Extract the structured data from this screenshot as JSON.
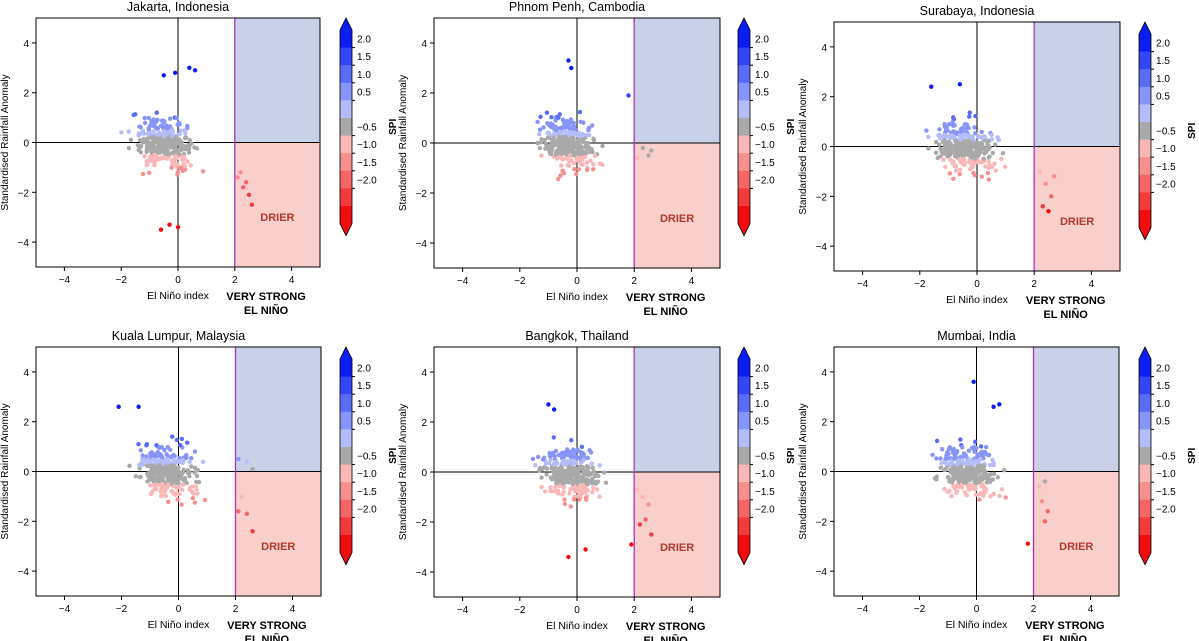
{
  "chart_data": [
    {
      "type": "scatter",
      "title": "Jakarta, Indonesia",
      "xlabel": "El Niño index",
      "ylabel": "Standardised Rainfall Anomaly",
      "xlim": [
        -5,
        5
      ],
      "ylim": [
        -5,
        5
      ],
      "xticks": [
        -4,
        -2,
        0,
        2,
        4
      ],
      "yticks": [
        -4,
        -2,
        0,
        2,
        4
      ],
      "threshold_x": 2,
      "annotation_x": "VERY STRONG",
      "annotation_x2": "EL NIÑO",
      "region_label": "DRIER",
      "cloud": {
        "x_range": [
          -2.2,
          1.6
        ],
        "y_range": [
          -3.6,
          3.0
        ]
      },
      "extra_points": [
        {
          "x": -0.1,
          "y": 2.8
        },
        {
          "x": -0.5,
          "y": 2.7
        },
        {
          "x": 0.4,
          "y": 3.0
        },
        {
          "x": 0.6,
          "y": 2.9
        },
        {
          "x": -0.3,
          "y": -3.3
        },
        {
          "x": 0.0,
          "y": -3.4
        },
        {
          "x": -0.6,
          "y": -3.5
        },
        {
          "x": 2.1,
          "y": -1.4
        },
        {
          "x": 2.3,
          "y": -1.8
        },
        {
          "x": 2.5,
          "y": -2.1
        },
        {
          "x": 2.6,
          "y": -2.5
        },
        {
          "x": 2.2,
          "y": -1.2
        },
        {
          "x": 2.4,
          "y": -1.6
        }
      ],
      "colorbar": {
        "label": "SPI",
        "ticks": [
          "2.0",
          "1.5",
          "1.0",
          "0.5",
          "−0.5",
          "−1.0",
          "−1.5",
          "−2.0"
        ],
        "colors": [
          "#0b1ef2",
          "#3346f4",
          "#5a6cf6",
          "#8794f8",
          "#b4bcfa",
          "#a9a9a9",
          "#f9b7b7",
          "#f78f8f",
          "#f46565",
          "#f23b3b",
          "#f00d0d"
        ]
      }
    },
    {
      "type": "scatter",
      "title": "Phnom Penh, Cambodia",
      "xlabel": "El Niño index",
      "ylabel": "Standardised Rainfall Anomaly",
      "xlim": [
        -5,
        5
      ],
      "ylim": [
        -5,
        5
      ],
      "xticks": [
        -4,
        -2,
        0,
        2,
        4
      ],
      "yticks": [
        -4,
        -2,
        0,
        2,
        4
      ],
      "threshold_x": 2,
      "annotation_x": "VERY STRONG",
      "annotation_x2": "EL NIÑO",
      "region_label": "DRIER",
      "cloud": {
        "x_range": [
          -2.0,
          1.7
        ],
        "y_range": [
          -2.9,
          3.3
        ]
      },
      "extra_points": [
        {
          "x": -0.3,
          "y": 3.3
        },
        {
          "x": -0.2,
          "y": 3.0
        },
        {
          "x": 1.8,
          "y": 1.9
        },
        {
          "x": 2.3,
          "y": -0.2
        },
        {
          "x": 2.5,
          "y": -0.5
        },
        {
          "x": 2.1,
          "y": -0.6
        },
        {
          "x": 2.6,
          "y": -0.3
        }
      ],
      "colorbar": {
        "label": "SPI",
        "ticks": [
          "2.0",
          "1.5",
          "1.0",
          "0.5",
          "−0.5",
          "−1.0",
          "−1.5",
          "−2.0"
        ],
        "colors": [
          "#0b1ef2",
          "#3346f4",
          "#5a6cf6",
          "#8794f8",
          "#b4bcfa",
          "#a9a9a9",
          "#f9b7b7",
          "#f78f8f",
          "#f46565",
          "#f23b3b",
          "#f00d0d"
        ]
      }
    },
    {
      "type": "scatter",
      "title": "Surabaya, Indonesia",
      "xlabel": "El Niño index",
      "ylabel": "Standardised Rainfall Anomaly",
      "xlim": [
        -5,
        5
      ],
      "ylim": [
        -5,
        5
      ],
      "xticks": [
        -4,
        -2,
        0,
        2,
        4
      ],
      "yticks": [
        -4,
        -2,
        0,
        2,
        4
      ],
      "threshold_x": 2,
      "annotation_x": "VERY STRONG",
      "annotation_x2": "EL NIÑO",
      "region_label": "DRIER",
      "cloud": {
        "x_range": [
          -2.3,
          1.8
        ],
        "y_range": [
          -2.7,
          2.5
        ]
      },
      "extra_points": [
        {
          "x": -1.6,
          "y": 2.4
        },
        {
          "x": -0.6,
          "y": 2.5
        },
        {
          "x": 2.2,
          "y": -1.0
        },
        {
          "x": 2.4,
          "y": -1.5
        },
        {
          "x": 2.6,
          "y": -2.0
        },
        {
          "x": 2.5,
          "y": -2.6
        },
        {
          "x": 2.3,
          "y": -2.4
        },
        {
          "x": 2.7,
          "y": -1.2
        }
      ],
      "colorbar": {
        "label": "SPI",
        "ticks": [
          "2.0",
          "1.5",
          "1.0",
          "0.5",
          "−0.5",
          "−1.0",
          "−1.5",
          "−2.0"
        ],
        "colors": [
          "#0b1ef2",
          "#3346f4",
          "#5a6cf6",
          "#8794f8",
          "#b4bcfa",
          "#a9a9a9",
          "#f9b7b7",
          "#f78f8f",
          "#f46565",
          "#f23b3b",
          "#f00d0d"
        ]
      }
    },
    {
      "type": "scatter",
      "title": "Kuala Lumpur, Malaysia",
      "xlabel": "El Niño index",
      "ylabel": "Standardised Rainfall Anomaly",
      "xlim": [
        -5,
        5
      ],
      "ylim": [
        -5,
        5
      ],
      "xticks": [
        -4,
        -2,
        0,
        2,
        4
      ],
      "yticks": [
        -4,
        -2,
        0,
        2,
        4
      ],
      "threshold_x": 2,
      "annotation_x": "VERY STRONG",
      "annotation_x2": "EL NIÑO",
      "region_label": "DRIER",
      "cloud": {
        "x_range": [
          -2.2,
          1.8
        ],
        "y_range": [
          -2.5,
          2.7
        ]
      },
      "extra_points": [
        {
          "x": -2.1,
          "y": 2.6
        },
        {
          "x": -1.4,
          "y": 2.6
        },
        {
          "x": 2.1,
          "y": 0.5
        },
        {
          "x": 2.4,
          "y": 0.4
        },
        {
          "x": 2.6,
          "y": 0.1
        },
        {
          "x": 2.2,
          "y": -1.0
        },
        {
          "x": 2.4,
          "y": -1.7
        },
        {
          "x": 2.6,
          "y": -2.4
        },
        {
          "x": 2.1,
          "y": -1.6
        }
      ],
      "colorbar": {
        "label": "SPI",
        "ticks": [
          "2.0",
          "1.5",
          "1.0",
          "0.5",
          "−0.5",
          "−1.0",
          "−1.5",
          "−2.0"
        ],
        "colors": [
          "#0b1ef2",
          "#3346f4",
          "#5a6cf6",
          "#8794f8",
          "#b4bcfa",
          "#a9a9a9",
          "#f9b7b7",
          "#f78f8f",
          "#f46565",
          "#f23b3b",
          "#f00d0d"
        ]
      }
    },
    {
      "type": "scatter",
      "title": "Bangkok, Thailand",
      "xlabel": "El Niño index",
      "ylabel": "Standardised Rainfall Anomaly",
      "xlim": [
        -5,
        5
      ],
      "ylim": [
        -5,
        5
      ],
      "xticks": [
        -4,
        -2,
        0,
        2,
        4
      ],
      "yticks": [
        -4,
        -2,
        0,
        2,
        4
      ],
      "threshold_x": 2,
      "annotation_x": "VERY STRONG",
      "annotation_x2": "EL NIÑO",
      "region_label": "DRIER",
      "cloud": {
        "x_range": [
          -2.0,
          1.9
        ],
        "y_range": [
          -3.4,
          2.6
        ]
      },
      "extra_points": [
        {
          "x": -1.0,
          "y": 2.7
        },
        {
          "x": -0.8,
          "y": 2.5
        },
        {
          "x": 0.3,
          "y": -3.1
        },
        {
          "x": -0.3,
          "y": -3.4
        },
        {
          "x": 2.1,
          "y": -0.7
        },
        {
          "x": 2.3,
          "y": -1.0
        },
        {
          "x": 2.5,
          "y": -1.3
        },
        {
          "x": 2.4,
          "y": -1.9
        },
        {
          "x": 2.6,
          "y": -2.5
        },
        {
          "x": 2.2,
          "y": -2.1
        },
        {
          "x": 1.9,
          "y": -2.9
        }
      ],
      "colorbar": {
        "label": "SPI",
        "ticks": [
          "2.0",
          "1.5",
          "1.0",
          "0.5",
          "−0.5",
          "−1.0",
          "−1.5",
          "−2.0"
        ],
        "colors": [
          "#0b1ef2",
          "#3346f4",
          "#5a6cf6",
          "#8794f8",
          "#b4bcfa",
          "#a9a9a9",
          "#f9b7b7",
          "#f78f8f",
          "#f46565",
          "#f23b3b",
          "#f00d0d"
        ]
      }
    },
    {
      "type": "scatter",
      "title": "Mumbai, India",
      "xlabel": "El Niño index",
      "ylabel": "Standardised Rainfall Anomaly",
      "xlim": [
        -5,
        5
      ],
      "ylim": [
        -5,
        5
      ],
      "xticks": [
        -4,
        -2,
        0,
        2,
        4
      ],
      "yticks": [
        -4,
        -2,
        0,
        2,
        4
      ],
      "threshold_x": 2,
      "annotation_x": "VERY STRONG",
      "annotation_x2": "EL NIÑO",
      "region_label": "DRIER",
      "cloud": {
        "x_range": [
          -2.1,
          1.9
        ],
        "y_range": [
          -2.9,
          3.6
        ]
      },
      "extra_points": [
        {
          "x": -0.1,
          "y": 3.6
        },
        {
          "x": 0.6,
          "y": 2.6
        },
        {
          "x": 0.8,
          "y": 2.7
        },
        {
          "x": 1.8,
          "y": -2.9
        },
        {
          "x": 2.2,
          "y": -0.6
        },
        {
          "x": 2.4,
          "y": -0.4
        },
        {
          "x": 2.3,
          "y": -1.2
        },
        {
          "x": 2.5,
          "y": -1.6
        },
        {
          "x": 2.4,
          "y": -2.0
        }
      ],
      "colorbar": {
        "label": "SPI",
        "ticks": [
          "2.0",
          "1.5",
          "1.0",
          "0.5",
          "−0.5",
          "−1.0",
          "−1.5",
          "−2.0"
        ],
        "colors": [
          "#0b1ef2",
          "#3346f4",
          "#5a6cf6",
          "#8794f8",
          "#b4bcfa",
          "#a9a9a9",
          "#f9b7b7",
          "#f78f8f",
          "#f46565",
          "#f23b3b",
          "#f00d0d"
        ]
      }
    }
  ]
}
